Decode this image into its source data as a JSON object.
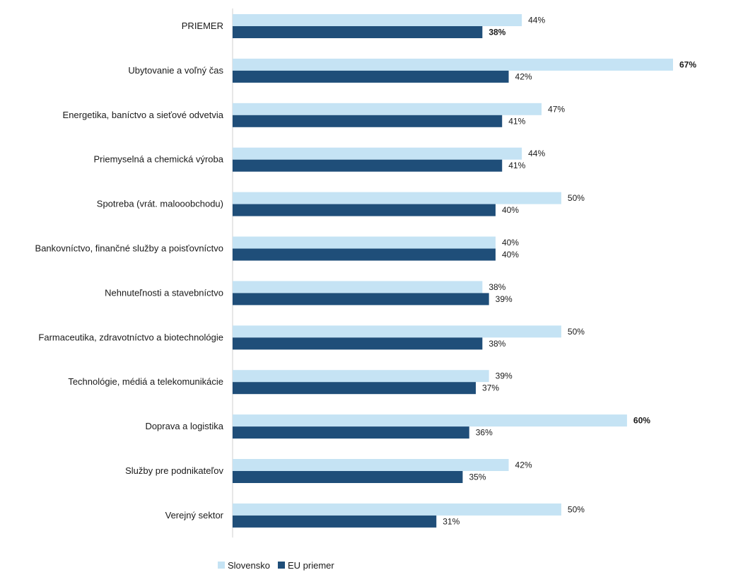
{
  "chart_data": {
    "type": "bar",
    "orientation": "horizontal",
    "categories": [
      "PRIEMER",
      "Ubytovanie a voľný čas",
      "Energetika, baníctvo a sieťové odvetvia",
      "Priemyselná a chemická výroba",
      "Spotreba (vrát. malooobchodu)",
      "Bankovníctvo, finančné služby a poisťovníctvo",
      "Nehnuteľnosti a stavebníctvo",
      "Farmaceutika, zdravotníctvo a biotechnológie",
      "Technológie, médiá a telekomunikácie",
      "Doprava a logistika",
      "Služby pre podnikateľov",
      "Verejný sektor"
    ],
    "series": [
      {
        "name": "Slovensko",
        "color": "#c5e3f4",
        "values": [
          44,
          67,
          47,
          44,
          50,
          40,
          38,
          50,
          39,
          60,
          42,
          50
        ],
        "labels": [
          "44%",
          "67%",
          "47%",
          "44%",
          "50%",
          "40%",
          "38%",
          "50%",
          "39%",
          "60%",
          "42%",
          "50%"
        ],
        "bold": [
          false,
          true,
          false,
          false,
          false,
          false,
          false,
          false,
          false,
          true,
          false,
          false
        ]
      },
      {
        "name": "EU priemer",
        "color": "#1f4e79",
        "values": [
          38,
          42,
          41,
          41,
          40,
          40,
          39,
          38,
          37,
          36,
          35,
          31
        ],
        "labels": [
          "38%",
          "42%",
          "41%",
          "41%",
          "40%",
          "40%",
          "39%",
          "38%",
          "37%",
          "36%",
          "35%",
          "31%"
        ],
        "bold": [
          true,
          false,
          false,
          false,
          false,
          false,
          false,
          false,
          false,
          false,
          false,
          false
        ]
      }
    ],
    "xlim": [
      0,
      67
    ],
    "grid": false,
    "legend_position": "bottom-left"
  }
}
